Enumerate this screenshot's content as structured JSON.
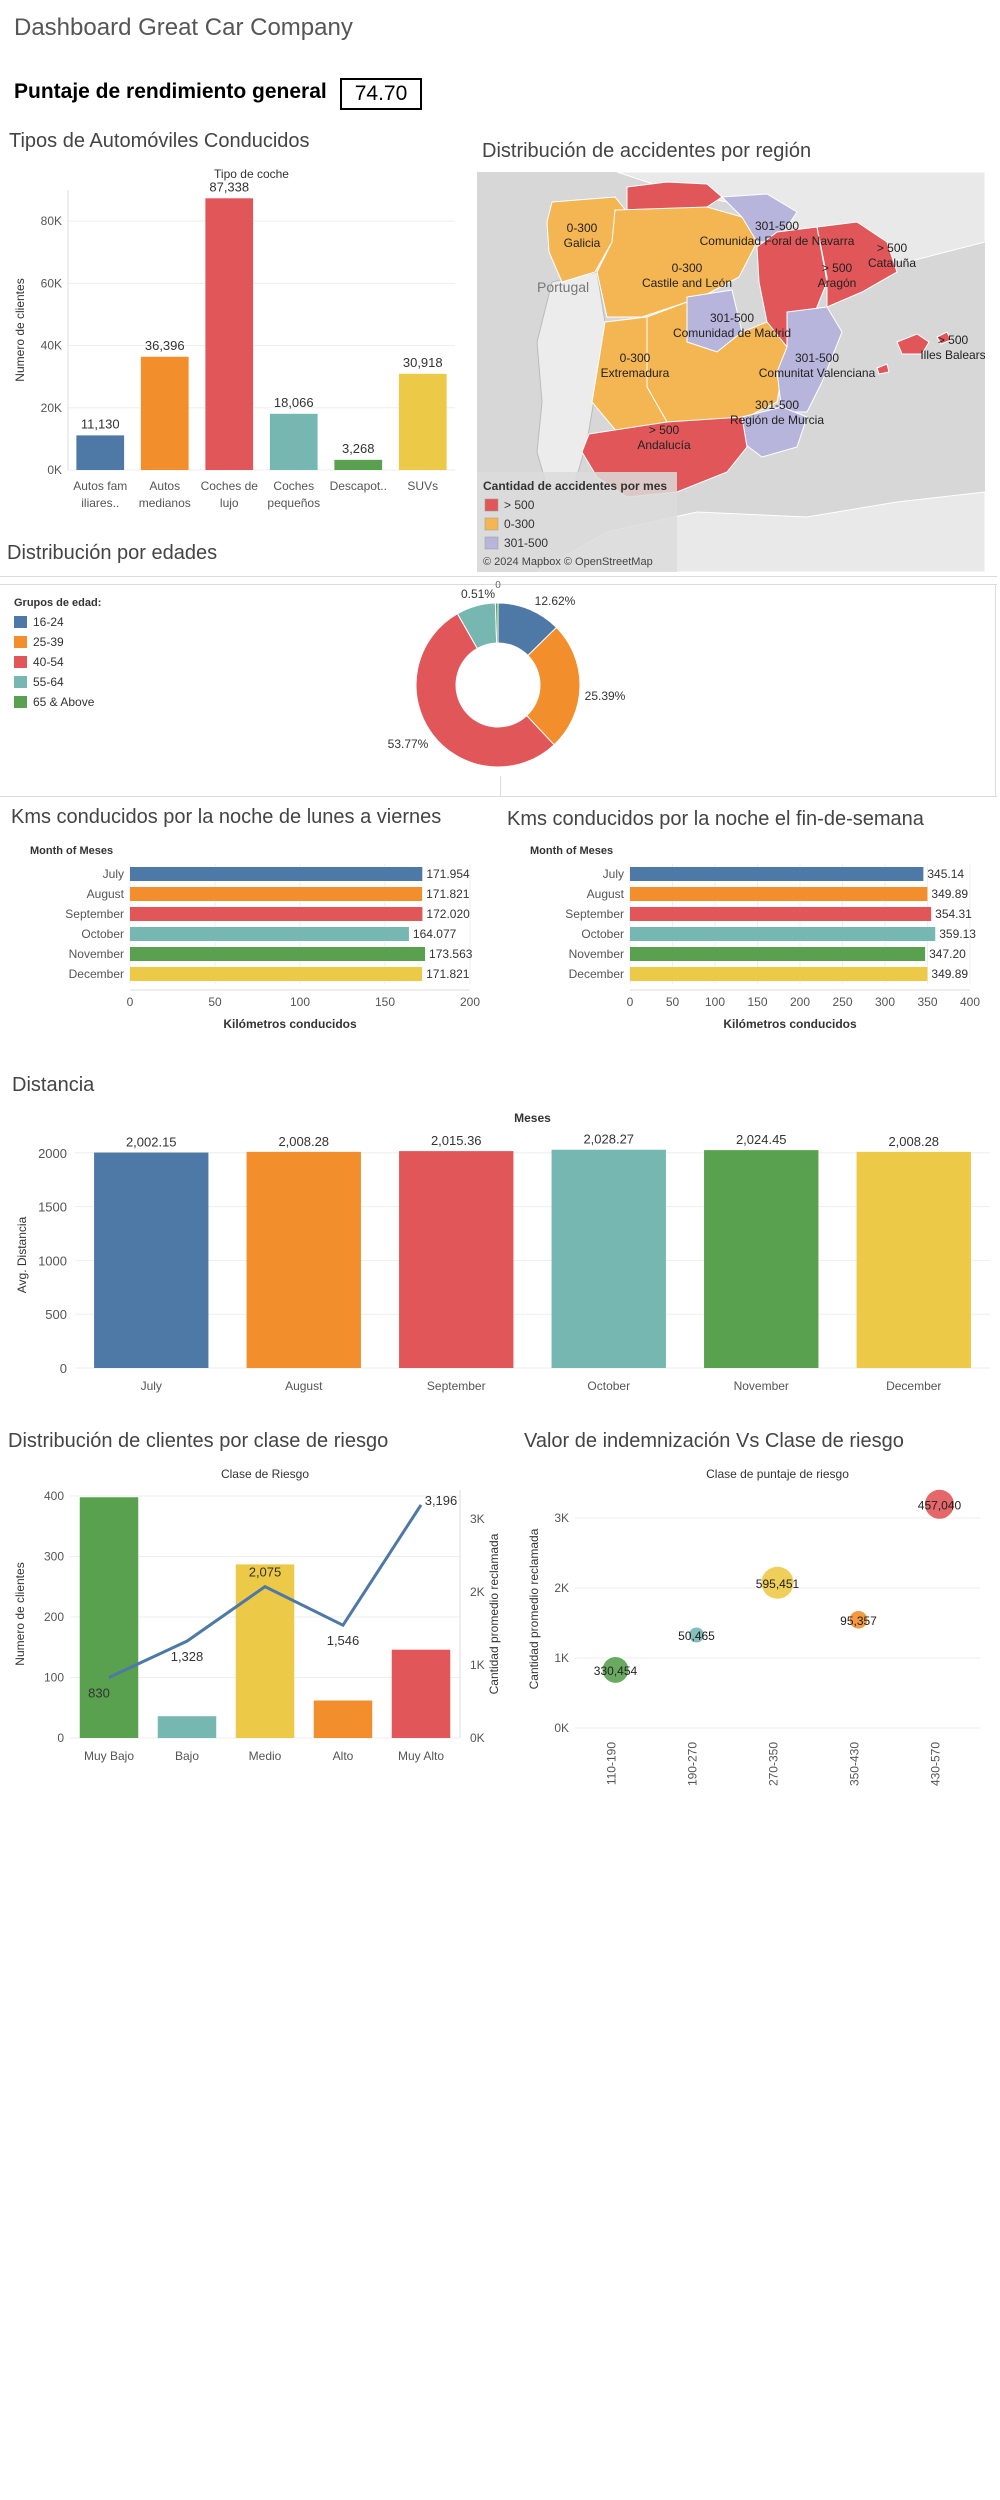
{
  "header": {
    "title": "Dashboard Great Car Company",
    "score_label": "Puntaje de rendimiento general",
    "score_value": "74.70"
  },
  "colors": {
    "blue": "#4e79a7",
    "orange": "#f28e2b",
    "red": "#e15759",
    "teal": "#76b7b2",
    "green": "#59a14f",
    "yellow": "#edc948",
    "lavender": "#b7b5dc",
    "line": "#4e79a7"
  },
  "chart_data": [
    {
      "id": "car-types",
      "type": "bar",
      "title": "Tipos de Automóviles Conducidos",
      "xlabel": "Tipo de coche",
      "ylabel": "Numero de clientes",
      "categories": [
        [
          "Autos fam",
          "iliares.."
        ],
        [
          "Autos",
          "medianos"
        ],
        [
          "Coches de",
          "lujo"
        ],
        [
          "Coches",
          "pequeños"
        ],
        [
          "Descapot.."
        ],
        [
          "SUVs"
        ]
      ],
      "values": [
        11130,
        36396,
        87338,
        18066,
        3268,
        30918
      ],
      "labels": [
        "11,130",
        "36,396",
        "87,338",
        "18,066",
        "3,268",
        "30,918"
      ],
      "ylim": [
        0,
        90000
      ],
      "ticks": [
        0,
        20000,
        40000,
        60000,
        80000
      ],
      "tick_labels": [
        "0K",
        "20K",
        "40K",
        "60K",
        "80K"
      ]
    },
    {
      "id": "accident-map",
      "type": "map",
      "title": "Distribución de accidentes por región",
      "regions": [
        {
          "name": "Galicia",
          "value": "0-300"
        },
        {
          "name": "Comunidad Foral de Navarra",
          "value": "301-500"
        },
        {
          "name": "Castile and León",
          "value": "0-300"
        },
        {
          "name": "Aragón",
          "value": "> 500"
        },
        {
          "name": "Cataluña",
          "value": "> 500"
        },
        {
          "name": "Comunidad de Madrid",
          "value": "301-500"
        },
        {
          "name": "Extremadura",
          "value": "0-300"
        },
        {
          "name": "Comunitat Valenciana",
          "value": "301-500"
        },
        {
          "name": "Illes Balears",
          "value": "> 500"
        },
        {
          "name": "Región de Murcia",
          "value": "301-500"
        },
        {
          "name": "Andalucía",
          "value": "> 500"
        }
      ],
      "country_label": "Portugal",
      "legend_title": "Cantidad de accidentes por mes",
      "legend": [
        "> 500",
        "0-300",
        "301-500"
      ],
      "attribution": "© 2024 Mapbox © OpenStreetMap"
    },
    {
      "id": "age-donut",
      "type": "pie",
      "title": "Distribución por edades",
      "legend_title": "Grupos de edad:",
      "categories": [
        "16-24",
        "25-39",
        "40-54",
        "55-64",
        "65 & Above"
      ],
      "values": [
        12.62,
        25.39,
        53.77,
        7.71,
        0.51
      ],
      "labels": [
        "12.62%",
        "25.39%",
        "53.77%",
        "",
        "0.51%"
      ],
      "top_label": "0"
    },
    {
      "id": "km-weekday",
      "type": "bar",
      "title": "Kms conducidos por la noche de lunes a viernes",
      "xlabel": "Kilómetros conducidos",
      "ylabel": "Month of Meses",
      "categories": [
        "July",
        "August",
        "September",
        "October",
        "November",
        "December"
      ],
      "values": [
        171.954,
        171.821,
        172.02,
        164.077,
        173.563,
        171.821
      ],
      "labels": [
        "171.954",
        "171.821",
        "172.020",
        "164.077",
        "173.563",
        "171.821"
      ],
      "xlim": [
        0,
        200
      ],
      "ticks": [
        0,
        50,
        100,
        150,
        200
      ],
      "tick_labels": [
        "0",
        "50",
        "100",
        "150",
        "200"
      ]
    },
    {
      "id": "km-weekend",
      "type": "bar",
      "title": "Kms conducidos por la noche el fin-de-semana",
      "xlabel": "Kilómetros conducidos",
      "ylabel": "Month of Meses",
      "categories": [
        "July",
        "August",
        "September",
        "October",
        "November",
        "December"
      ],
      "values": [
        345.14,
        349.89,
        354.31,
        359.13,
        347.2,
        349.89
      ],
      "labels": [
        "345.14",
        "349.89",
        "354.31",
        "359.13",
        "347.20",
        "349.89"
      ],
      "xlim": [
        0,
        400
      ],
      "ticks": [
        0,
        50,
        100,
        150,
        200,
        250,
        300,
        350,
        400
      ],
      "tick_labels": [
        "0",
        "50",
        "100",
        "150",
        "200",
        "250",
        "300",
        "350",
        "400"
      ]
    },
    {
      "id": "distance",
      "type": "bar",
      "title": "Distancia",
      "xlabel": "Meses",
      "ylabel": "Avg. Distancia",
      "categories": [
        "July",
        "August",
        "September",
        "October",
        "November",
        "December"
      ],
      "values": [
        2002.15,
        2008.28,
        2015.36,
        2028.27,
        2024.45,
        2008.28
      ],
      "labels": [
        "2,002.15",
        "2,008.28",
        "2,015.36",
        "2,028.27",
        "2,024.45",
        "2,008.28"
      ],
      "ylim": [
        0,
        2100
      ],
      "ticks": [
        0,
        500,
        1000,
        1500,
        2000
      ],
      "tick_labels": [
        "0",
        "500",
        "1000",
        "1500",
        "2000"
      ]
    },
    {
      "id": "risk-class",
      "type": "bar",
      "title": "Distribución de clientes por clase de riesgo",
      "xlabel": "Clase de Riesgo",
      "ylabel": "Numero de clientes",
      "y2label": "Cantidad promedio reclamada",
      "categories": [
        "Muy Bajo",
        "Bajo",
        "Medio",
        "Alto",
        "Muy Alto"
      ],
      "values": [
        398,
        36,
        287,
        62,
        146
      ],
      "line_values": [
        830,
        1328,
        2075,
        1546,
        3196
      ],
      "line_labels": [
        "830",
        "1,328",
        "2,075",
        "1,546",
        "3,196"
      ],
      "ylim": [
        0,
        410
      ],
      "ticks": [
        0,
        100,
        200,
        300,
        400
      ],
      "tick_labels": [
        "0",
        "100",
        "200",
        "300",
        "400"
      ],
      "y2lim": [
        0,
        3400
      ],
      "ticks2": [
        0,
        1000,
        2000,
        3000
      ],
      "tick2_labels": [
        "0K",
        "1K",
        "2K",
        "3K"
      ]
    },
    {
      "id": "claim-scatter",
      "type": "scatter",
      "title": "Valor de indemnización Vs Clase de riesgo",
      "xlabel": "Clase de puntaje de riesgo",
      "ylabel": "Cantidad promedio reclamada",
      "categories": [
        "110-190",
        "190-270",
        "270-350",
        "350-430",
        "430-570"
      ],
      "y": [
        830,
        1328,
        2075,
        1546,
        3196
      ],
      "sizes": [
        330454,
        50465,
        595451,
        95357,
        457040
      ],
      "labels": [
        "330,454",
        "50,465",
        "595,451",
        "95,357",
        "457,040"
      ],
      "ylim": [
        0,
        3400
      ],
      "ticks": [
        0,
        1000,
        2000,
        3000
      ],
      "tick_labels": [
        "0K",
        "1K",
        "2K",
        "3K"
      ]
    }
  ]
}
